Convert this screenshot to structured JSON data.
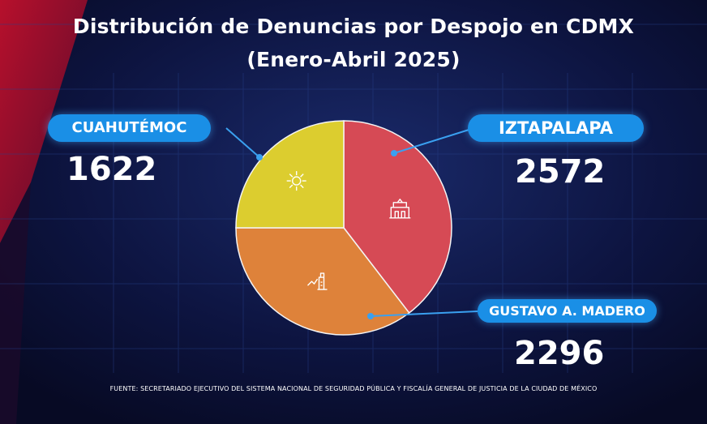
{
  "title": "Distribución de Denuncias por Despojo en CDMX",
  "subtitle": "(Enero-Abril 2025)",
  "source": "FUENTE: SECRETARIADO EJECUTIVO DEL SISTEMA NACIONAL DE SEGURIDAD PÚBLICA Y FISCALÍA GENERAL DE JUSTICIA DE LA CIUDAD DE MÉXICO",
  "chart_data": {
    "type": "pie",
    "title": "Distribución de Denuncias por Despojo en CDMX",
    "subtitle": "(Enero-Abril 2025)",
    "slices": [
      {
        "label": "IZTAPALAPA",
        "value": 2572,
        "value_label": "2572",
        "color": "#d64a55",
        "icon": "district-building-icon"
      },
      {
        "label": "GUSTAVO A. MADERO",
        "value": 2296,
        "value_label": "2296",
        "color": "#de823a",
        "icon": "basilica-icon"
      },
      {
        "label": "CUAHUTÉMOC",
        "value": 1622,
        "value_label": "1622",
        "color": "#dccd2f",
        "icon": "aztec-sun-icon"
      }
    ]
  },
  "colors": {
    "background": "#0a0f2e",
    "grid": "#26408a",
    "pill": "#1a8fe6",
    "accent_red": "#b0102c"
  }
}
